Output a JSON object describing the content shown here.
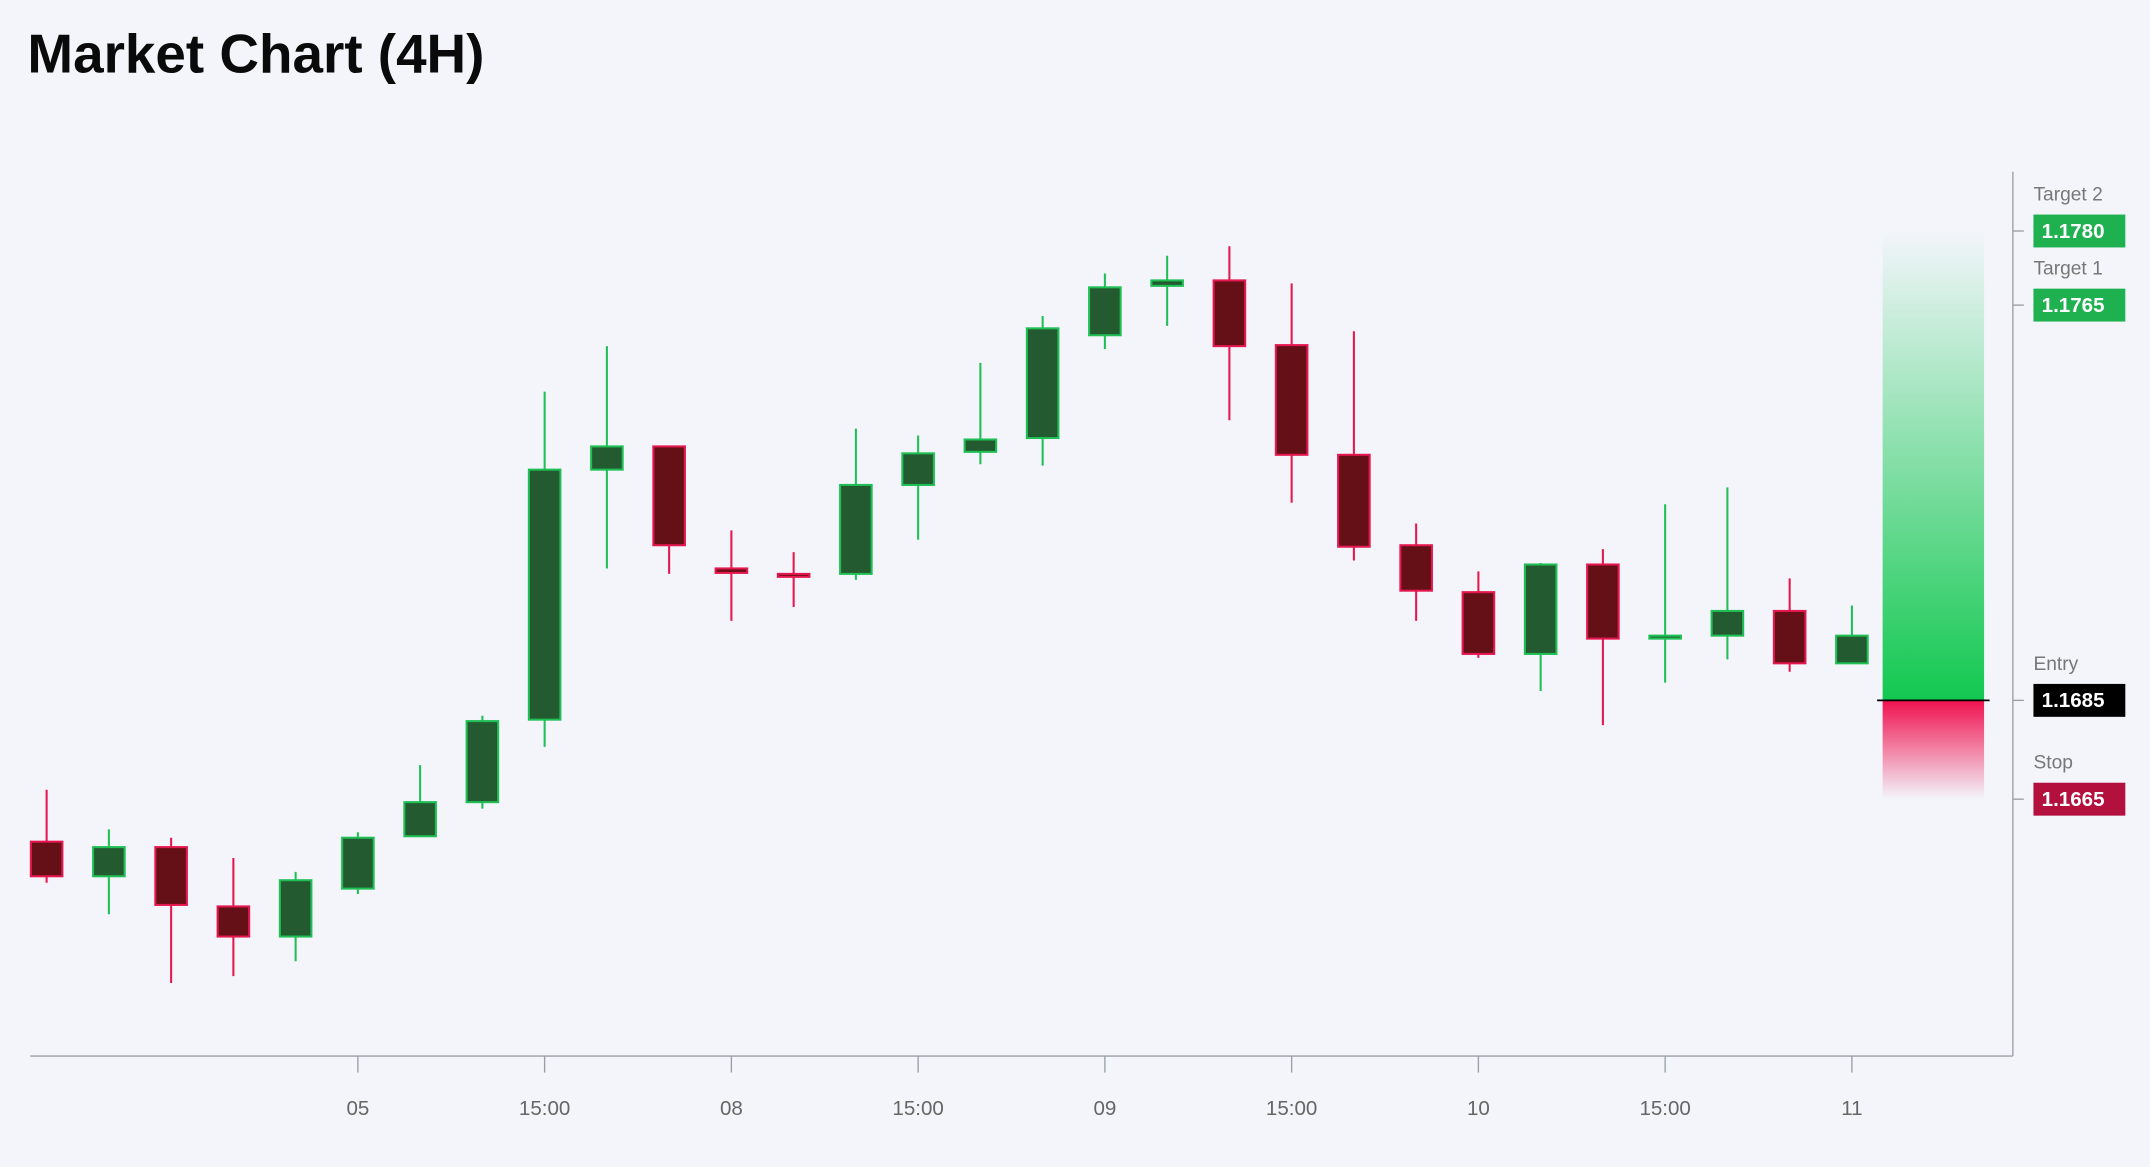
{
  "chart_data": {
    "type": "candlestick",
    "title": "Market Chart (4H)",
    "x": [
      null,
      null,
      null,
      null,
      null,
      "05",
      null,
      null,
      "15:00",
      null,
      null,
      "08",
      null,
      null,
      "15:00",
      null,
      null,
      "09",
      null,
      null,
      "15:00",
      null,
      null,
      "10",
      null,
      null,
      "15:00",
      null,
      null,
      "11"
    ],
    "open": [
      1.16564,
      1.16494,
      1.16553,
      1.16433,
      1.16372,
      1.16469,
      1.16575,
      1.16644,
      1.16811,
      1.17317,
      1.17364,
      1.17117,
      1.17106,
      1.17106,
      1.17286,
      1.17353,
      1.17381,
      1.17589,
      1.17689,
      1.177,
      1.17569,
      1.17347,
      1.17164,
      1.17069,
      1.16944,
      1.17125,
      1.16975,
      1.16981,
      1.17031,
      1.16925
    ],
    "high": [
      1.16669,
      1.16589,
      1.16572,
      1.16531,
      1.16503,
      1.16583,
      1.16719,
      1.16819,
      1.17475,
      1.17567,
      1.17364,
      1.17194,
      1.1715,
      1.174,
      1.17386,
      1.17533,
      1.17628,
      1.17714,
      1.1775,
      1.17769,
      1.17694,
      1.17597,
      1.17208,
      1.17111,
      1.17128,
      1.17156,
      1.17247,
      1.17281,
      1.17097,
      1.17042
    ],
    "low": [
      1.16481,
      1.16417,
      1.16278,
      1.16292,
      1.16322,
      1.16458,
      1.16575,
      1.16631,
      1.16756,
      1.17117,
      1.17106,
      1.17011,
      1.17039,
      1.17094,
      1.17175,
      1.17328,
      1.17325,
      1.17561,
      1.17608,
      1.17417,
      1.1725,
      1.17133,
      1.17011,
      1.16936,
      1.16869,
      1.168,
      1.16886,
      1.16933,
      1.16908,
      1.16925
    ],
    "close": [
      1.16494,
      1.16553,
      1.16436,
      1.16372,
      1.16486,
      1.16572,
      1.16644,
      1.16808,
      1.17317,
      1.17364,
      1.17164,
      1.17108,
      1.171,
      1.17286,
      1.1735,
      1.17378,
      1.17603,
      1.17686,
      1.177,
      1.17567,
      1.17347,
      1.17161,
      1.17072,
      1.16944,
      1.17125,
      1.16975,
      1.16981,
      1.17031,
      1.16925,
      1.16981
    ],
    "up_color": "#1fbf55",
    "up_fill": "#235a2f",
    "down_color": "#e5174f",
    "down_fill": "#650f17",
    "ylim": [
      1.1613,
      1.1792
    ],
    "yticks": [
      {
        "value": 1.178,
        "label": "1.1780"
      },
      {
        "value": 1.1765,
        "label": "1.1765"
      },
      {
        "value": 1.1685,
        "label": "1.1685"
      },
      {
        "value": 1.1665,
        "label": "1.1665"
      }
    ],
    "tick_captions": [
      "Target 2",
      "Target 1",
      "Entry",
      "Stop"
    ],
    "tick_colors": [
      "#1fb14f",
      "#1fb14f",
      "#000000",
      "#b3103e"
    ]
  }
}
